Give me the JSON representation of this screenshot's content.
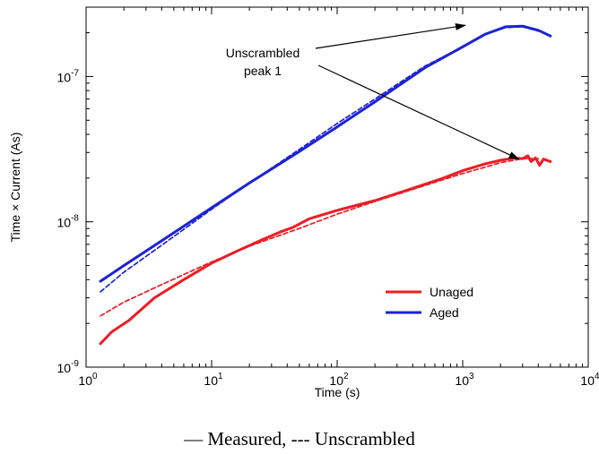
{
  "chart_data": {
    "type": "line",
    "title": "",
    "xlabel": "Time (s)",
    "ylabel": "Time × Current (As)",
    "x_scale": "log",
    "y_scale": "log",
    "xlim": [
      1,
      10000
    ],
    "ylim": [
      1e-09,
      3e-07
    ],
    "grid": false,
    "x_ticks": [
      {
        "base": "10",
        "exp": "0",
        "value": 1
      },
      {
        "base": "10",
        "exp": "1",
        "value": 10
      },
      {
        "base": "10",
        "exp": "2",
        "value": 100
      },
      {
        "base": "10",
        "exp": "3",
        "value": 1000
      },
      {
        "base": "10",
        "exp": "4",
        "value": 10000
      }
    ],
    "y_ticks": [
      {
        "base": "10",
        "exp": "-9",
        "value": 1e-09
      },
      {
        "base": "10",
        "exp": "-8",
        "value": 1e-08
      },
      {
        "base": "10",
        "exp": "-7",
        "value": 1e-07
      }
    ],
    "legend": {
      "placement": "lower-right",
      "entries": [
        {
          "label": "Unaged",
          "color": "#ee1c24"
        },
        {
          "label": "Aged",
          "color": "#1c22d6"
        }
      ]
    },
    "annotation": {
      "lines": [
        "Unscrambled",
        "peak 1"
      ],
      "targets": [
        [
          1050,
          2.25e-07
        ],
        [
          2800,
          2.7e-08
        ]
      ]
    },
    "series": [
      {
        "name": "Unaged",
        "style": "solid",
        "color": "#ee1c24",
        "points": [
          [
            1.3,
            1.45e-09
          ],
          [
            1.6,
            1.75e-09
          ],
          [
            2.2,
            2.1e-09
          ],
          [
            3.5,
            3e-09
          ],
          [
            6,
            4e-09
          ],
          [
            10,
            5.2e-09
          ],
          [
            16,
            6.3e-09
          ],
          [
            25,
            7.5e-09
          ],
          [
            35,
            8.5e-09
          ],
          [
            45,
            9.2e-09
          ],
          [
            60,
            1.05e-08
          ],
          [
            100,
            1.2e-08
          ],
          [
            200,
            1.4e-08
          ],
          [
            400,
            1.7e-08
          ],
          [
            700,
            2e-08
          ],
          [
            1000,
            2.25e-08
          ],
          [
            1500,
            2.5e-08
          ],
          [
            2000,
            2.65e-08
          ],
          [
            2600,
            2.75e-08
          ],
          [
            3000,
            2.72e-08
          ],
          [
            3300,
            2.85e-08
          ],
          [
            3500,
            2.6e-08
          ],
          [
            3800,
            2.75e-08
          ],
          [
            4100,
            2.45e-08
          ],
          [
            4400,
            2.7e-08
          ],
          [
            5000,
            2.6e-08
          ]
        ]
      },
      {
        "name": "Unaged",
        "style": "dashed",
        "color": "#ee1c24",
        "points": [
          [
            1.3,
            2.25e-09
          ],
          [
            2,
            2.8e-09
          ],
          [
            4,
            3.7e-09
          ],
          [
            10,
            5.3e-09
          ],
          [
            20,
            6.8e-09
          ],
          [
            50,
            9e-09
          ],
          [
            100,
            1.13e-08
          ],
          [
            200,
            1.38e-08
          ],
          [
            500,
            1.78e-08
          ],
          [
            1000,
            2.15e-08
          ],
          [
            2000,
            2.55e-08
          ],
          [
            3000,
            2.72e-08
          ],
          [
            4000,
            2.72e-08
          ]
        ]
      },
      {
        "name": "Aged",
        "style": "solid",
        "color": "#1c22d6",
        "points": [
          [
            1.3,
            3.9e-09
          ],
          [
            2,
            5e-09
          ],
          [
            4,
            7.4e-09
          ],
          [
            10,
            1.25e-08
          ],
          [
            20,
            1.85e-08
          ],
          [
            50,
            3.05e-08
          ],
          [
            100,
            4.5e-08
          ],
          [
            200,
            6.7e-08
          ],
          [
            500,
            1.15e-07
          ],
          [
            1000,
            1.6e-07
          ],
          [
            1500,
            1.95e-07
          ],
          [
            2200,
            2.2e-07
          ],
          [
            3000,
            2.22e-07
          ],
          [
            4000,
            2.08e-07
          ],
          [
            5000,
            1.9e-07
          ]
        ]
      },
      {
        "name": "Aged",
        "style": "dashed",
        "color": "#1c22d6",
        "points": [
          [
            1.3,
            3.3e-09
          ],
          [
            2,
            4.5e-09
          ],
          [
            4,
            6.9e-09
          ],
          [
            10,
            1.22e-08
          ],
          [
            20,
            1.85e-08
          ],
          [
            50,
            3.15e-08
          ],
          [
            100,
            4.75e-08
          ],
          [
            200,
            7e-08
          ],
          [
            500,
            1.18e-07
          ],
          [
            1000,
            1.6e-07
          ],
          [
            1500,
            1.95e-07
          ],
          [
            2200,
            2.17e-07
          ],
          [
            3000,
            2.2e-07
          ],
          [
            4000,
            2.05e-07
          ]
        ]
      }
    ]
  },
  "caption": {
    "solid_mark": "—",
    "text": " Measured,  --- Unscrambled"
  }
}
